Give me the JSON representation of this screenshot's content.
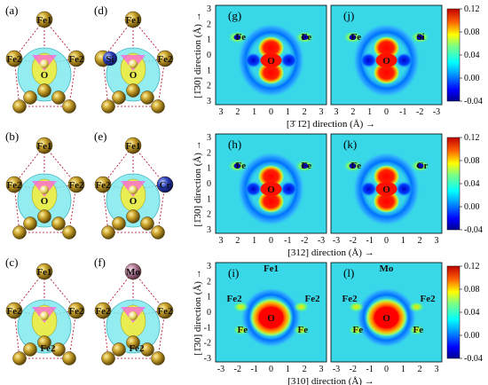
{
  "panels_structure": [
    {
      "label": "(a)",
      "atoms": [
        "Fe1",
        "Fe2",
        "Fe2",
        "O"
      ],
      "dopant": null
    },
    {
      "label": "(d)",
      "atoms": [
        "Fe1",
        "Si",
        "Fe2",
        "O"
      ],
      "dopant": "Si"
    },
    {
      "label": "(b)",
      "atoms": [
        "Fe1",
        "Fe2",
        "Fe2",
        "O"
      ],
      "dopant": null
    },
    {
      "label": "(e)",
      "atoms": [
        "Fe1",
        "Fe2",
        "Cr",
        "O"
      ],
      "dopant": "Cr"
    },
    {
      "label": "(c)",
      "atoms": [
        "Fe1",
        "Fe2",
        "Fe2",
        "Fe2"
      ],
      "dopant": null
    },
    {
      "label": "(f)",
      "atoms": [
        "Mo",
        "Fe2",
        "Fe2",
        "Fe2"
      ],
      "dopant": "Mo"
    }
  ],
  "panels_map": [
    {
      "label": "(g)",
      "labels": [
        "Fe",
        "Fe",
        "O"
      ]
    },
    {
      "label": "(j)",
      "labels": [
        "Fe",
        "Si",
        "O"
      ]
    },
    {
      "label": "(h)",
      "labels": [
        "Fe",
        "Fe",
        "O"
      ]
    },
    {
      "label": "(k)",
      "labels": [
        "Fe",
        "Cr",
        "O"
      ]
    },
    {
      "label": "(i)",
      "labels": [
        "Fe2",
        "Fe2",
        "Fe",
        "Fe",
        "O",
        "Fe1"
      ]
    },
    {
      "label": "(l)",
      "labels": [
        "Fe2",
        "Fe2",
        "Fe",
        "Fe",
        "O",
        "Mo"
      ]
    }
  ],
  "rows": [
    {
      "ylabel": "[1̄30] direction (Å) →",
      "xlabel": "[3̄ 1̄2] direction (Å) →",
      "yticks": [
        "3",
        "2",
        "1",
        "0",
        "1",
        "2",
        "3"
      ],
      "xticks_left": [
        "3",
        "2",
        "1",
        "0",
        "1",
        "2",
        "3"
      ],
      "xticks_right": [
        "3",
        "2",
        "1",
        "0",
        "-1",
        "-2",
        "-3"
      ],
      "xticks_left_sign": [
        "3",
        "-2",
        "-1",
        "0",
        "1",
        "2",
        "3"
      ]
    },
    {
      "ylabel": "[1̄30] direction (Å) →",
      "xlabel": "[312] direction (Å) →",
      "yticks": [
        "3",
        "2",
        "1",
        "0",
        "1",
        "2",
        "3"
      ],
      "xticks_left": [
        "3",
        "2",
        "1",
        "0",
        "-1",
        "-2",
        "-3"
      ],
      "xticks_right": [
        "-3",
        "-2",
        "-1",
        "0",
        "1",
        "2",
        "3"
      ]
    },
    {
      "ylabel": "[1̄30] direction (Å) →",
      "xlabel": "[310] direction (Å) →",
      "yticks": [
        "3",
        "2",
        "1",
        "0",
        "-1",
        "-2",
        "-3"
      ],
      "xticks_left": [
        "-3",
        "-2",
        "-1",
        "0",
        "1",
        "2",
        "3"
      ],
      "xticks_right": [
        "-3",
        "-2",
        "-1",
        "0",
        "1",
        "2",
        "3"
      ]
    }
  ],
  "colorbar": {
    "ticks": [
      "0.12",
      "0.08",
      "0.04",
      "0.00",
      "-0.04"
    ],
    "range": [
      -0.04,
      0.12
    ]
  },
  "colors": {
    "field": "#38d8e8",
    "red": "#ff0000",
    "blue": "#0000e0",
    "gold": "#c9a12a"
  }
}
